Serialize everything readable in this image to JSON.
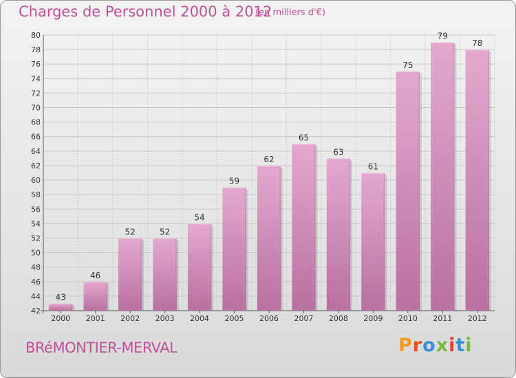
{
  "header": {
    "title": "Charges de Personnel 2000 à 2012",
    "subtitle": "(en milliers d'€)"
  },
  "footer": {
    "commune": "BRéMONTIER-MERVAL",
    "logo_text": "Proxiti"
  },
  "colors": {
    "bar_fill_top": "#e4a8d0",
    "bar_fill_bottom": "#b8709f",
    "title": "#c0509a",
    "logo": [
      "#f39a1e",
      "#e8501c",
      "#3a8fd6",
      "#7ab843",
      "#e53935",
      "#3a8fd6",
      "#7ab843"
    ]
  },
  "chart_data": {
    "type": "bar",
    "title": "Charges de Personnel 2000 à 2012",
    "subtitle": "(en milliers d'€)",
    "categories": [
      "2000",
      "2001",
      "2002",
      "2003",
      "2004",
      "2005",
      "2006",
      "2007",
      "2008",
      "2009",
      "2010",
      "2011",
      "2012"
    ],
    "values": [
      43,
      46,
      52,
      52,
      54,
      59,
      62,
      65,
      63,
      61,
      75,
      79,
      78
    ],
    "ylim": [
      42,
      80
    ],
    "yticks": [
      42,
      44,
      46,
      48,
      50,
      52,
      54,
      56,
      58,
      60,
      62,
      64,
      66,
      68,
      70,
      72,
      74,
      76,
      78,
      80
    ],
    "grid": true,
    "xlabel": "",
    "ylabel": ""
  }
}
